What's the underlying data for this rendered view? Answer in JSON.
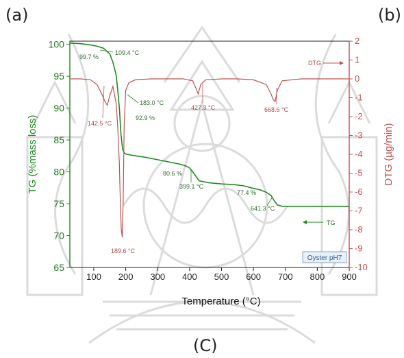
{
  "panel_labels": {
    "a": "(a)",
    "b": "(b)",
    "c": "(C)"
  },
  "colors": {
    "tg": "#1f8a1f",
    "dtg": "#c0504d",
    "axis": "#222222",
    "watermark": "#bdbdbd"
  },
  "chart_data": {
    "type": "line",
    "title": "",
    "xlabel": "Temperature (°C)",
    "ylabel_left": "TG (%mass loss)",
    "ylabel_right": "DTG (µg/min)",
    "xlim": [
      25,
      900
    ],
    "ylim_left": [
      65,
      100.5
    ],
    "ylim_right": [
      -10,
      2
    ],
    "x_ticks": [
      100,
      200,
      300,
      400,
      500,
      600,
      700,
      800,
      900
    ],
    "y_ticks_left": [
      65,
      70,
      75,
      80,
      85,
      90,
      95,
      100
    ],
    "y_ticks_right": [
      2,
      1,
      0,
      -1,
      -2,
      -3,
      -4,
      -5,
      -6,
      -7,
      -8,
      -9,
      -10
    ],
    "grid": false,
    "series": [
      {
        "name": "TG",
        "axis": "left",
        "x": [
          25,
          60,
          90,
          110,
          130,
          150,
          160,
          170,
          175,
          180,
          185,
          190,
          195,
          200,
          220,
          260,
          300,
          340,
          370,
          390,
          400,
          410,
          430,
          460,
          500,
          540,
          570,
          600,
          620,
          640,
          655,
          665,
          675,
          690,
          720,
          800,
          900
        ],
        "y": [
          100.2,
          100.1,
          99.9,
          99.7,
          99.4,
          98.5,
          97.2,
          95.2,
          92.9,
          90.0,
          86.0,
          83.6,
          83.0,
          82.8,
          82.6,
          82.3,
          81.9,
          81.5,
          81.2,
          80.9,
          80.6,
          80.0,
          78.6,
          78.3,
          78.1,
          78.0,
          77.8,
          77.4,
          77.2,
          76.8,
          76.3,
          75.5,
          74.8,
          74.6,
          74.6,
          74.6,
          74.6
        ]
      },
      {
        "name": "DTG",
        "axis": "right",
        "x": [
          25,
          60,
          90,
          110,
          125,
          135,
          142,
          150,
          160,
          170,
          175,
          180,
          183,
          186,
          189,
          192,
          195,
          200,
          210,
          230,
          280,
          330,
          380,
          410,
          420,
          427,
          435,
          450,
          500,
          550,
          600,
          640,
          655,
          662,
          668,
          675,
          690,
          750,
          800,
          900
        ],
        "y": [
          0,
          0,
          -0.05,
          -0.3,
          -0.8,
          -1.2,
          -1.4,
          -0.9,
          -0.4,
          -1.3,
          -2.5,
          -4.5,
          -6.5,
          -8.0,
          -8.4,
          -6.5,
          -2.5,
          -0.6,
          -0.2,
          -0.05,
          0,
          0,
          0,
          -0.1,
          -0.5,
          -0.8,
          -0.3,
          -0.05,
          0,
          0,
          -0.05,
          -0.3,
          -0.8,
          -1.1,
          -1.2,
          -0.6,
          -0.1,
          0,
          0,
          0
        ]
      }
    ],
    "annotations": [
      {
        "text": "99.7 %",
        "color": "tg"
      },
      {
        "text": "109.4 °C",
        "color": "tg"
      },
      {
        "text": "183.0 °C",
        "color": "tg"
      },
      {
        "text": "92.9 %",
        "color": "tg"
      },
      {
        "text": "80.6 %",
        "color": "tg"
      },
      {
        "text": "399.1 °C",
        "color": "tg"
      },
      {
        "text": "77.4 %",
        "color": "tg"
      },
      {
        "text": "641.3 °C",
        "color": "tg"
      },
      {
        "text": "142.5 °C",
        "color": "dtg"
      },
      {
        "text": "189.6 °C",
        "color": "dtg"
      },
      {
        "text": "427.3 °C",
        "color": "dtg"
      },
      {
        "text": "668.6 °C",
        "color": "dtg"
      }
    ],
    "legend_arrows": [
      {
        "text": "DTG",
        "color": "dtg"
      },
      {
        "text": "TG",
        "color": "tg"
      }
    ],
    "sample_label": "Oyster pH7"
  }
}
